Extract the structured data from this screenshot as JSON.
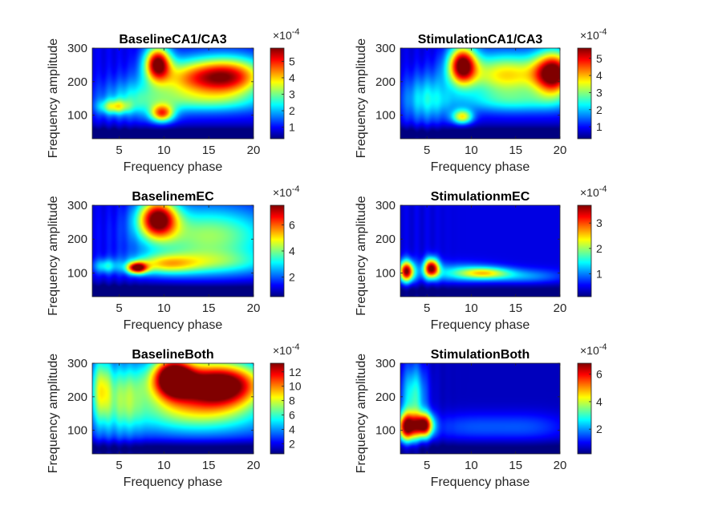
{
  "chart_data": [
    {
      "type": "heatmap",
      "title": "BaselineCA1/CA3",
      "xlabel": "Frequency phase",
      "ylabel": "Frequency amplitude",
      "xlim": [
        2,
        20
      ],
      "ylim": [
        30,
        300
      ],
      "xticks": [
        5,
        10,
        15,
        20
      ],
      "yticks": [
        100,
        200,
        300
      ],
      "colorbar": {
        "range": [
          0.3,
          5.8
        ],
        "ticks": [
          1,
          2,
          3,
          4,
          5
        ],
        "exponent": "×10^-4"
      },
      "blobs": [
        {
          "x": 9.3,
          "y": 255,
          "sx": 1.0,
          "sy": 35,
          "v": 5.6
        },
        {
          "x": 17.5,
          "y": 215,
          "sx": 2.8,
          "sy": 40,
          "v": 4.8
        },
        {
          "x": 13,
          "y": 210,
          "sx": 3,
          "sy": 40,
          "v": 3.6
        },
        {
          "x": 9.8,
          "y": 105,
          "sx": 0.9,
          "sy": 18,
          "v": 4.2
        },
        {
          "x": 4.5,
          "y": 125,
          "sx": 1.2,
          "sy": 15,
          "v": 3.0
        },
        {
          "x": 7,
          "y": 150,
          "sx": 3,
          "sy": 40,
          "v": 2.2
        },
        {
          "x": 15,
          "y": 140,
          "sx": 5,
          "sy": 25,
          "v": 2.2
        }
      ],
      "base": 0.9
    },
    {
      "type": "heatmap",
      "title": "StimulationCA1/CA3",
      "xlabel": "Frequency phase",
      "ylabel": "Frequency amplitude",
      "xlim": [
        2,
        20
      ],
      "ylim": [
        30,
        300
      ],
      "xticks": [
        5,
        10,
        15,
        20
      ],
      "yticks": [
        100,
        200,
        300
      ],
      "colorbar": {
        "range": [
          0.3,
          5.6
        ],
        "ticks": [
          1,
          2,
          3,
          4,
          5
        ],
        "exponent": "×10^-4"
      },
      "blobs": [
        {
          "x": 9.0,
          "y": 250,
          "sx": 1.1,
          "sy": 40,
          "v": 5.4
        },
        {
          "x": 19.3,
          "y": 225,
          "sx": 1.5,
          "sy": 45,
          "v": 5.5
        },
        {
          "x": 14,
          "y": 220,
          "sx": 3.5,
          "sy": 45,
          "v": 3.8
        },
        {
          "x": 9.0,
          "y": 95,
          "sx": 0.8,
          "sy": 15,
          "v": 3.5
        },
        {
          "x": 5,
          "y": 150,
          "sx": 2,
          "sy": 50,
          "v": 2.2
        },
        {
          "x": 15,
          "y": 140,
          "sx": 5,
          "sy": 25,
          "v": 2.0
        }
      ],
      "base": 0.8
    },
    {
      "type": "heatmap",
      "title": "BaselinemEC",
      "xlabel": "Frequency phase",
      "ylabel": "Frequency amplitude",
      "xlim": [
        2,
        20
      ],
      "ylim": [
        30,
        300
      ],
      "xticks": [
        5,
        10,
        15,
        20
      ],
      "yticks": [
        100,
        200,
        300
      ],
      "colorbar": {
        "range": [
          0.5,
          7.5
        ],
        "ticks": [
          2,
          4,
          6
        ],
        "exponent": "×10^-4"
      },
      "blobs": [
        {
          "x": 9.3,
          "y": 260,
          "sx": 1.5,
          "sy": 40,
          "v": 7.3
        },
        {
          "x": 7.0,
          "y": 115,
          "sx": 0.8,
          "sy": 12,
          "v": 6.8
        },
        {
          "x": 15,
          "y": 210,
          "sx": 5,
          "sy": 60,
          "v": 4.2
        },
        {
          "x": 10,
          "y": 125,
          "sx": 2.5,
          "sy": 20,
          "v": 3.6
        },
        {
          "x": 3.5,
          "y": 120,
          "sx": 1,
          "sy": 15,
          "v": 3.0
        },
        {
          "x": 15,
          "y": 130,
          "sx": 5,
          "sy": 25,
          "v": 3.0
        }
      ],
      "base": 1.2
    },
    {
      "type": "heatmap",
      "title": "StimulationmEC",
      "xlabel": "Frequency phase",
      "ylabel": "Frequency amplitude",
      "xlim": [
        2,
        20
      ],
      "ylim": [
        30,
        300
      ],
      "xticks": [
        5,
        10,
        15,
        20
      ],
      "yticks": [
        100,
        200,
        300
      ],
      "colorbar": {
        "range": [
          0.1,
          3.7
        ],
        "ticks": [
          1,
          2,
          3
        ],
        "exponent": "×10^-4"
      },
      "blobs": [
        {
          "x": 2.7,
          "y": 105,
          "sx": 0.6,
          "sy": 22,
          "v": 3.6
        },
        {
          "x": 5.5,
          "y": 115,
          "sx": 0.6,
          "sy": 20,
          "v": 3.5
        },
        {
          "x": 11.5,
          "y": 100,
          "sx": 2.0,
          "sy": 12,
          "v": 1.9
        },
        {
          "x": 8.5,
          "y": 100,
          "sx": 3,
          "sy": 20,
          "v": 1.3
        },
        {
          "x": 16,
          "y": 90,
          "sx": 3,
          "sy": 15,
          "v": 1.1
        }
      ],
      "base": 0.45
    },
    {
      "type": "heatmap",
      "title": "BaselineBoth",
      "xlabel": "Frequency phase",
      "ylabel": "Frequency amplitude",
      "xlim": [
        2,
        20
      ],
      "ylim": [
        30,
        300
      ],
      "xticks": [
        5,
        10,
        15,
        20
      ],
      "yticks": [
        100,
        200,
        300
      ],
      "colorbar": {
        "range": [
          0.6,
          13.2
        ],
        "ticks": [
          2,
          4,
          6,
          8,
          10,
          12
        ],
        "exponent": "×10^-4"
      },
      "blobs": [
        {
          "x": 11,
          "y": 260,
          "sx": 1.5,
          "sy": 40,
          "v": 12.5
        },
        {
          "x": 17,
          "y": 235,
          "sx": 3,
          "sy": 45,
          "v": 11.5
        },
        {
          "x": 13,
          "y": 225,
          "sx": 4,
          "sy": 55,
          "v": 9.0
        },
        {
          "x": 3,
          "y": 220,
          "sx": 0.8,
          "sy": 70,
          "v": 7.5
        },
        {
          "x": 5.5,
          "y": 200,
          "sx": 1.5,
          "sy": 70,
          "v": 6.0
        },
        {
          "x": 14,
          "y": 140,
          "sx": 6,
          "sy": 40,
          "v": 5.5
        }
      ],
      "base": 2.2
    },
    {
      "type": "heatmap",
      "title": "StimulationBoth",
      "xlabel": "Frequency phase",
      "ylabel": "Frequency amplitude",
      "xlim": [
        2,
        20
      ],
      "ylim": [
        30,
        300
      ],
      "xticks": [
        5,
        10,
        15,
        20
      ],
      "yticks": [
        100,
        200,
        300
      ],
      "colorbar": {
        "range": [
          0.2,
          6.8
        ],
        "ticks": [
          2,
          4,
          6
        ],
        "exponent": "×10^-4"
      },
      "blobs": [
        {
          "x": 2.8,
          "y": 110,
          "sx": 0.8,
          "sy": 30,
          "v": 6.5
        },
        {
          "x": 4.7,
          "y": 115,
          "sx": 0.7,
          "sy": 25,
          "v": 6.3
        },
        {
          "x": 3.5,
          "y": 200,
          "sx": 1.0,
          "sy": 70,
          "v": 3.0
        },
        {
          "x": 10,
          "y": 110,
          "sx": 4,
          "sy": 30,
          "v": 1.5
        },
        {
          "x": 17,
          "y": 110,
          "sx": 3,
          "sy": 30,
          "v": 1.3
        }
      ],
      "base": 0.6
    }
  ]
}
